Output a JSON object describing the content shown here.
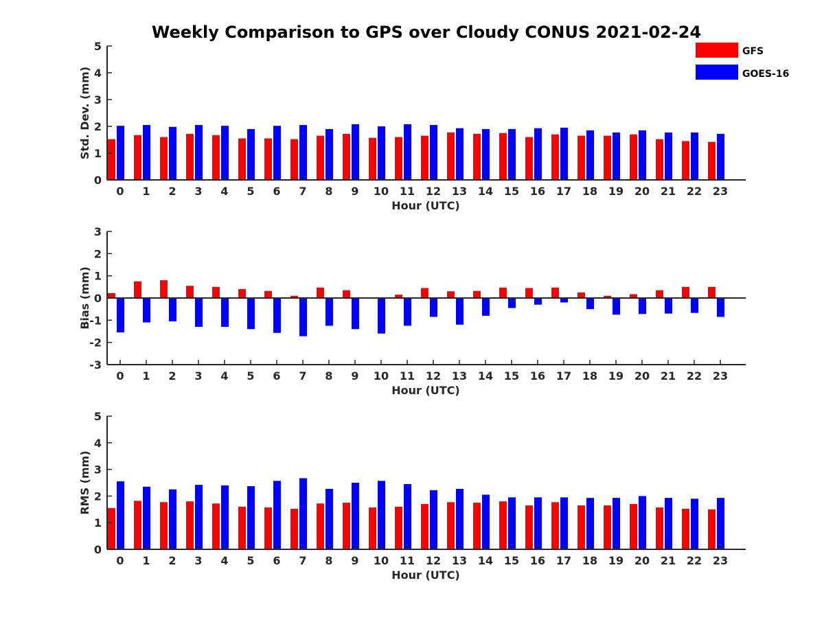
{
  "figure": {
    "title": "Weekly Comparison to GPS over Cloudy CONUS 2021-02-24"
  },
  "legend": {
    "placement": "top-right",
    "entries": [
      {
        "name": "GFS",
        "color": "#ff0000"
      },
      {
        "name": "GOES-16",
        "color": "#0000ff"
      }
    ]
  },
  "chart_data": [
    {
      "type": "bar",
      "xlabel": "Hour (UTC)",
      "ylabel": "Std. Dev. (mm)",
      "ylim": [
        0,
        5
      ],
      "yticks": [
        0,
        1,
        2,
        3,
        4,
        5
      ],
      "categories": [
        "0",
        "1",
        "2",
        "3",
        "4",
        "5",
        "6",
        "7",
        "8",
        "9",
        "10",
        "11",
        "12",
        "13",
        "14",
        "15",
        "16",
        "17",
        "18",
        "19",
        "20",
        "21",
        "22",
        "23"
      ],
      "series": [
        {
          "name": "GFS",
          "color": "#ff0000",
          "values": [
            1.52,
            1.67,
            1.6,
            1.72,
            1.67,
            1.55,
            1.55,
            1.52,
            1.65,
            1.72,
            1.57,
            1.6,
            1.65,
            1.77,
            1.72,
            1.75,
            1.6,
            1.7,
            1.65,
            1.65,
            1.7,
            1.52,
            1.45,
            1.42
          ]
        },
        {
          "name": "GOES-16",
          "color": "#0000ff",
          "values": [
            2.02,
            2.05,
            1.98,
            2.05,
            2.02,
            1.9,
            2.02,
            2.05,
            1.9,
            2.08,
            2.0,
            2.08,
            2.05,
            1.93,
            1.9,
            1.9,
            1.93,
            1.95,
            1.85,
            1.77,
            1.85,
            1.77,
            1.77,
            1.72
          ]
        }
      ]
    },
    {
      "type": "bar",
      "xlabel": "Hour (UTC)",
      "ylabel": "Bias (mm)",
      "ylim": [
        -3,
        3
      ],
      "yticks": [
        -3,
        -2,
        -1,
        0,
        1,
        2,
        3
      ],
      "categories": [
        "0",
        "1",
        "2",
        "3",
        "4",
        "5",
        "6",
        "7",
        "8",
        "9",
        "10",
        "11",
        "12",
        "13",
        "14",
        "15",
        "16",
        "17",
        "18",
        "19",
        "20",
        "21",
        "22",
        "23"
      ],
      "series": [
        {
          "name": "GFS",
          "color": "#ff0000",
          "values": [
            0.22,
            0.75,
            0.8,
            0.55,
            0.5,
            0.4,
            0.32,
            0.1,
            0.47,
            0.35,
            0.0,
            0.15,
            0.45,
            0.3,
            0.32,
            0.47,
            0.45,
            0.47,
            0.25,
            0.1,
            0.17,
            0.35,
            0.5,
            0.5
          ]
        },
        {
          "name": "GOES-16",
          "color": "#0000ff",
          "values": [
            -1.55,
            -1.1,
            -1.05,
            -1.3,
            -1.3,
            -1.4,
            -1.57,
            -1.72,
            -1.25,
            -1.4,
            -1.6,
            -1.25,
            -0.85,
            -1.2,
            -0.8,
            -0.45,
            -0.3,
            -0.2,
            -0.5,
            -0.75,
            -0.72,
            -0.7,
            -0.67,
            -0.85
          ]
        }
      ]
    },
    {
      "type": "bar",
      "xlabel": "Hour (UTC)",
      "ylabel": "RMS (mm)",
      "ylim": [
        0,
        5
      ],
      "yticks": [
        0,
        1,
        2,
        3,
        4,
        5
      ],
      "categories": [
        "0",
        "1",
        "2",
        "3",
        "4",
        "5",
        "6",
        "7",
        "8",
        "9",
        "10",
        "11",
        "12",
        "13",
        "14",
        "15",
        "16",
        "17",
        "18",
        "19",
        "20",
        "21",
        "22",
        "23"
      ],
      "series": [
        {
          "name": "GFS",
          "color": "#ff0000",
          "values": [
            1.55,
            1.82,
            1.77,
            1.8,
            1.72,
            1.6,
            1.57,
            1.52,
            1.72,
            1.75,
            1.57,
            1.6,
            1.7,
            1.77,
            1.75,
            1.8,
            1.65,
            1.77,
            1.65,
            1.65,
            1.7,
            1.57,
            1.52,
            1.5
          ]
        },
        {
          "name": "GOES-16",
          "color": "#0000ff",
          "values": [
            2.55,
            2.35,
            2.25,
            2.42,
            2.4,
            2.37,
            2.57,
            2.67,
            2.27,
            2.5,
            2.57,
            2.45,
            2.22,
            2.27,
            2.05,
            1.95,
            1.95,
            1.95,
            1.93,
            1.93,
            2.0,
            1.93,
            1.9,
            1.93
          ]
        }
      ]
    }
  ]
}
